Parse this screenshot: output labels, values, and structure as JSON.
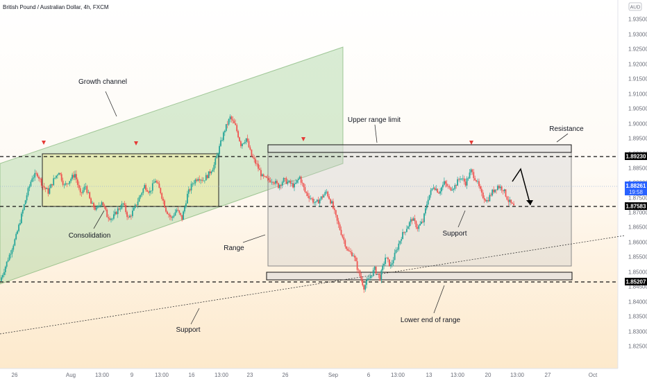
{
  "header": {
    "title": "British Pound / Australian Dollar, 4h, FXCM",
    "currency": "AUD"
  },
  "chart_data": {
    "type": "candlestick",
    "title": "British Pound / Australian Dollar, 4h, FXCM",
    "ylim": [
      1.825,
      1.94
    ],
    "y_ticks": [
      "1.93500",
      "1.93000",
      "1.92500",
      "1.92000",
      "1.91500",
      "1.91000",
      "1.90500",
      "1.90000",
      "1.89500",
      "1.89000",
      "1.88500",
      "1.88000",
      "1.87500",
      "1.87000",
      "1.86500",
      "1.86000",
      "1.85500",
      "1.85000",
      "1.84500",
      "1.84000",
      "1.83500",
      "1.83000",
      "1.82500"
    ],
    "x_ticks": [
      "26",
      "Aug",
      "13:00",
      "9",
      "13:00",
      "16",
      "13:00",
      "23",
      "26",
      "Sep",
      "6",
      "13:00",
      "13",
      "13:00",
      "20",
      "13:00",
      "27",
      "Oct"
    ],
    "price_levels": [
      {
        "name": "resistance-level",
        "value": "1.89230",
        "color": "#000000"
      },
      {
        "name": "current-price",
        "value": "1.88261",
        "sub": "19:58",
        "color": "#2962ff"
      },
      {
        "name": "mid-level",
        "value": "1.87583",
        "color": "#000000"
      },
      {
        "name": "support-level",
        "value": "1.85207",
        "color": "#000000"
      }
    ],
    "annotations": [
      "Growth channel",
      "Consolidation",
      "Upper range limit",
      "Resistance",
      "Range",
      "Support",
      "Lower end of range",
      "Support"
    ],
    "close_path": [
      1.857,
      1.862,
      1.867,
      1.872,
      1.879,
      1.886,
      1.892,
      1.893,
      1.889,
      1.887,
      1.891,
      1.894,
      1.889,
      1.891,
      1.893,
      1.886,
      1.889,
      1.883,
      1.881,
      1.884,
      1.879,
      1.878,
      1.881,
      1.883,
      1.878,
      1.881,
      1.885,
      1.889,
      1.887,
      1.891,
      1.887,
      1.881,
      1.878,
      1.881,
      1.878,
      1.886,
      1.89,
      1.892,
      1.891,
      1.893,
      1.896,
      1.902,
      1.908,
      1.912,
      1.909,
      1.903,
      1.905,
      1.899,
      1.896,
      1.892,
      1.891,
      1.891,
      1.889,
      1.891,
      1.89,
      1.889,
      1.892,
      1.887,
      1.885,
      1.883,
      1.885,
      1.887,
      1.883,
      1.877,
      1.872,
      1.867,
      1.866,
      1.86,
      1.855,
      1.858,
      1.861,
      1.858,
      1.865,
      1.862,
      1.867,
      1.872,
      1.875,
      1.878,
      1.875,
      1.877,
      1.885,
      1.889,
      1.887,
      1.89,
      1.888,
      1.889,
      1.892,
      1.89,
      1.894,
      1.891,
      1.886,
      1.884,
      1.887,
      1.889,
      1.888,
      1.884,
      1.882
    ]
  }
}
